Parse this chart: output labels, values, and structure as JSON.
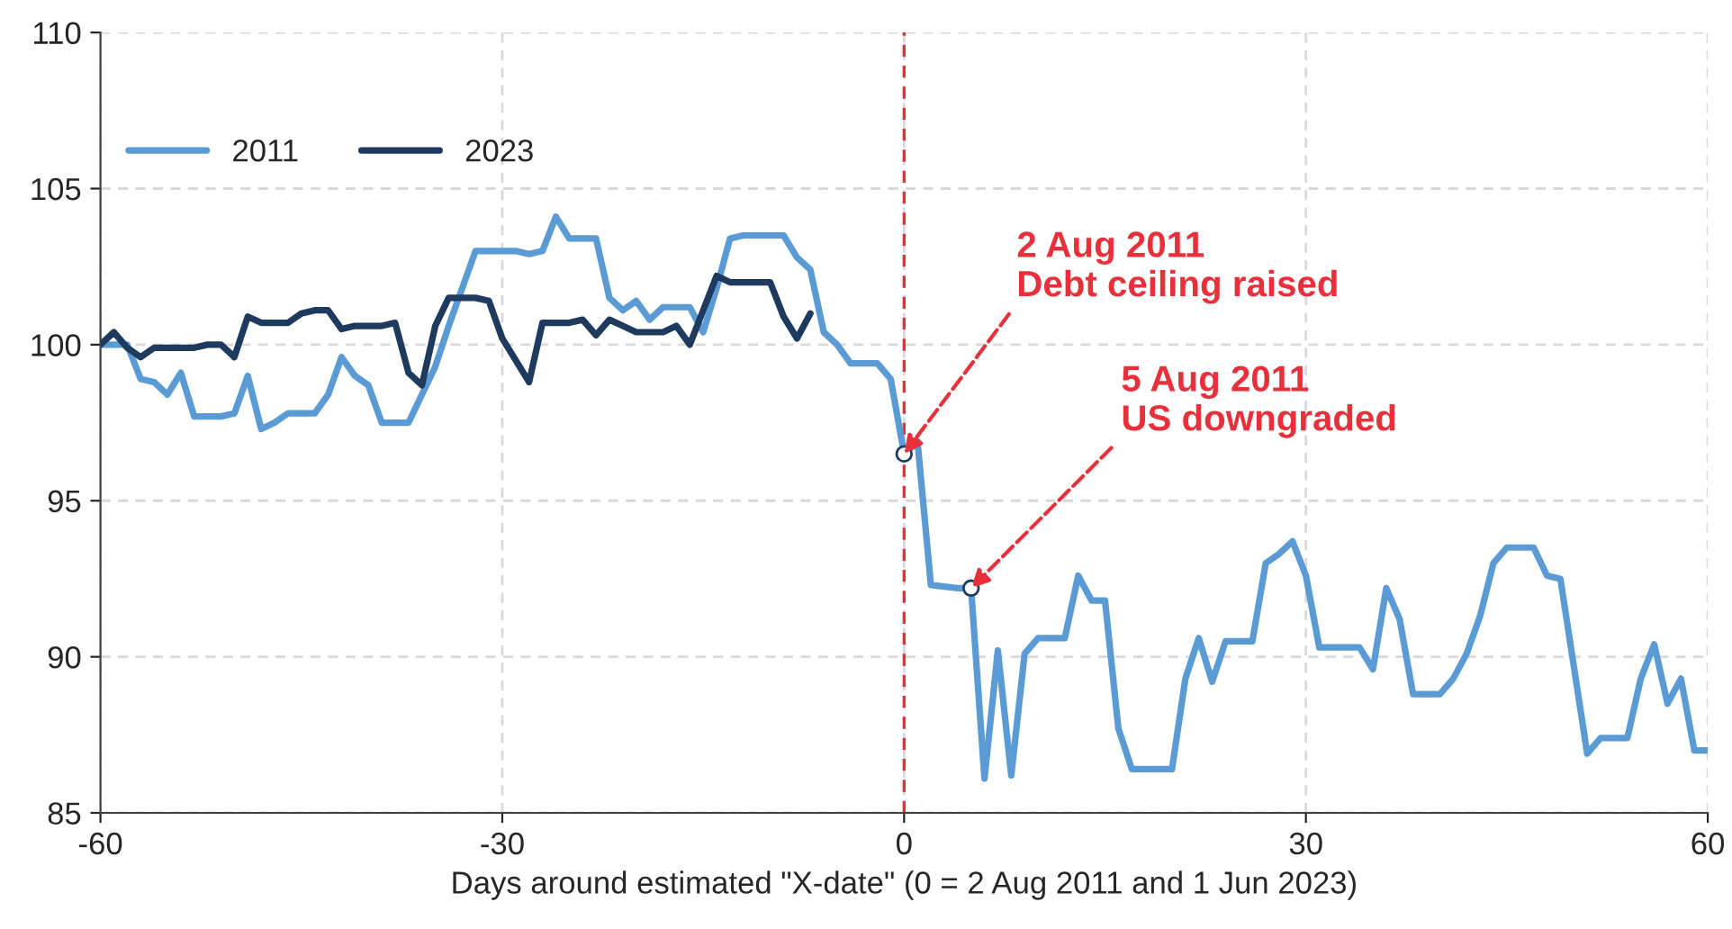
{
  "chart_data": {
    "type": "line",
    "xlabel": "Days around estimated \"X-date\" (0 = 2 Aug 2011 and 1 Jun 2023)",
    "xlim": [
      -60,
      60
    ],
    "xticks": [
      -60,
      -30,
      0,
      30,
      60
    ],
    "ylim": [
      85,
      110
    ],
    "yticks": [
      85,
      90,
      95,
      100,
      105,
      110
    ],
    "grid": true,
    "legend": "top left",
    "marker": "none",
    "line_style": "solid",
    "series": [
      {
        "name": "2011",
        "color": "#5b9bd5",
        "x": [
          -60,
          -58,
          -57,
          -56,
          -55,
          -54,
          -53,
          -51,
          -50,
          -49,
          -48,
          -47,
          -46,
          -44,
          -43,
          -42,
          -41,
          -40,
          -39,
          -37,
          -36,
          -35,
          -34,
          -33,
          -32,
          -29,
          -28,
          -27,
          -26,
          -25,
          -23,
          -22,
          -21,
          -20,
          -19,
          -18,
          -16,
          -15,
          -14,
          -13,
          -12,
          -9,
          -8,
          -7,
          -6,
          -5,
          -4,
          -2,
          -1,
          0,
          1,
          2,
          4,
          5,
          6,
          7,
          8,
          9,
          10,
          12,
          13,
          14,
          15,
          16,
          17,
          20,
          21,
          22,
          23,
          24,
          26,
          27,
          28,
          29,
          30,
          31,
          34,
          35,
          36,
          37,
          38,
          40,
          41,
          42,
          43,
          44,
          45,
          47,
          48,
          49,
          51,
          52,
          54,
          55,
          56,
          57,
          58,
          59,
          60
        ],
        "values": [
          100.0,
          100.0,
          98.9,
          98.8,
          98.4,
          99.1,
          97.7,
          97.7,
          97.8,
          99.0,
          97.3,
          97.5,
          97.8,
          97.8,
          98.4,
          99.6,
          99.0,
          98.7,
          97.5,
          97.5,
          98.4,
          99.3,
          100.6,
          101.8,
          103.0,
          103.0,
          102.9,
          103.0,
          104.1,
          103.4,
          103.4,
          101.5,
          101.1,
          101.4,
          100.8,
          101.2,
          101.2,
          100.4,
          101.8,
          103.4,
          103.5,
          103.5,
          102.8,
          102.4,
          100.4,
          100.0,
          99.4,
          99.4,
          98.9,
          96.5,
          96.9,
          92.3,
          92.2,
          92.2,
          86.1,
          90.2,
          86.2,
          90.1,
          90.6,
          90.6,
          92.6,
          91.8,
          91.8,
          87.7,
          86.4,
          86.4,
          89.3,
          90.6,
          89.2,
          90.5,
          90.5,
          93.0,
          93.3,
          93.7,
          92.6,
          90.3,
          90.3,
          89.6,
          92.2,
          91.2,
          88.8,
          88.8,
          89.3,
          90.1,
          91.3,
          93.0,
          93.5,
          93.5,
          92.6,
          92.5,
          86.9,
          87.4,
          87.4,
          89.3,
          90.4,
          88.5,
          89.3,
          87.0,
          87.0
        ]
      },
      {
        "name": "2023",
        "color": "#1f3a5f",
        "x": [
          -60,
          -59,
          -58,
          -57,
          -56,
          -53,
          -52,
          -51,
          -50,
          -49,
          -48,
          -46,
          -45,
          -44,
          -43,
          -42,
          -41,
          -39,
          -38,
          -37,
          -36,
          -35,
          -34,
          -32,
          -31,
          -30,
          -29,
          -28,
          -27,
          -25,
          -24,
          -23,
          -22,
          -21,
          -20,
          -18,
          -17,
          -16,
          -15,
          -14,
          -13,
          -10,
          -9,
          -8,
          -7
        ],
        "values": [
          100.0,
          100.4,
          99.9,
          99.6,
          99.9,
          99.9,
          100.0,
          100.0,
          99.6,
          100.9,
          100.7,
          100.7,
          101.0,
          101.1,
          101.1,
          100.5,
          100.6,
          100.6,
          100.7,
          99.1,
          98.7,
          100.6,
          101.5,
          101.5,
          101.4,
          100.2,
          99.5,
          98.8,
          100.7,
          100.7,
          100.8,
          100.3,
          100.8,
          100.6,
          100.4,
          100.4,
          100.6,
          100.0,
          101.1,
          102.2,
          102.0,
          102.0,
          100.9,
          100.2,
          101.0
        ]
      }
    ],
    "ref_lines": [
      {
        "axis": "x",
        "value": 0,
        "color": "#e8303a",
        "line_style": "dashed"
      }
    ],
    "annotations": [
      {
        "text": "2 Aug 2011\nDebt ceiling raised",
        "x": 0,
        "y": 96.5
      },
      {
        "text": "5 Aug 2011\nUS downgraded",
        "x": 5,
        "y": 92.2
      }
    ]
  }
}
